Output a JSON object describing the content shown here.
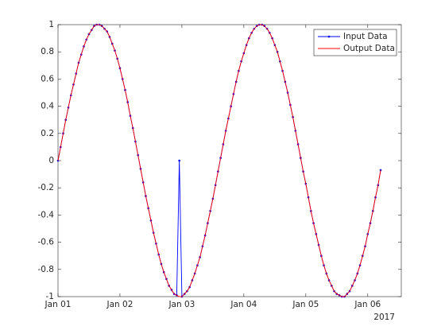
{
  "chart_data": {
    "type": "line",
    "x": [
      "2017-01-01T00:00",
      "2017-01-01T01:00",
      "2017-01-01T02:00",
      "2017-01-01T03:00",
      "2017-01-01T04:00",
      "2017-01-01T05:00",
      "2017-01-01T06:00",
      "2017-01-01T07:00",
      "2017-01-01T08:00",
      "2017-01-01T09:00",
      "2017-01-01T10:00",
      "2017-01-01T11:00",
      "2017-01-01T12:00",
      "2017-01-01T13:00",
      "2017-01-01T14:00",
      "2017-01-01T15:00",
      "2017-01-01T16:00",
      "2017-01-01T17:00",
      "2017-01-01T18:00",
      "2017-01-01T19:00",
      "2017-01-01T20:00",
      "2017-01-01T21:00",
      "2017-01-01T22:00",
      "2017-01-01T23:00",
      "2017-01-02T00:00",
      "2017-01-02T01:00",
      "2017-01-02T02:00",
      "2017-01-02T03:00",
      "2017-01-02T04:00",
      "2017-01-02T05:00",
      "2017-01-02T06:00",
      "2017-01-02T07:00",
      "2017-01-02T08:00",
      "2017-01-02T09:00",
      "2017-01-02T10:00",
      "2017-01-02T11:00",
      "2017-01-02T12:00",
      "2017-01-02T13:00",
      "2017-01-02T14:00",
      "2017-01-02T15:00",
      "2017-01-02T16:00",
      "2017-01-02T17:00",
      "2017-01-02T18:00",
      "2017-01-02T19:00",
      "2017-01-02T20:00",
      "2017-01-02T21:00",
      "2017-01-02T22:00",
      "2017-01-02T23:00",
      "2017-01-03T00:00",
      "2017-01-03T01:00",
      "2017-01-03T02:00",
      "2017-01-03T03:00",
      "2017-01-03T04:00",
      "2017-01-03T05:00",
      "2017-01-03T06:00",
      "2017-01-03T07:00",
      "2017-01-03T08:00",
      "2017-01-03T09:00",
      "2017-01-03T10:00",
      "2017-01-03T11:00",
      "2017-01-03T12:00",
      "2017-01-03T13:00",
      "2017-01-03T14:00",
      "2017-01-03T15:00",
      "2017-01-03T16:00",
      "2017-01-03T17:00",
      "2017-01-03T18:00",
      "2017-01-03T19:00",
      "2017-01-03T20:00",
      "2017-01-03T21:00",
      "2017-01-03T22:00",
      "2017-01-03T23:00",
      "2017-01-04T00:00",
      "2017-01-04T01:00",
      "2017-01-04T02:00",
      "2017-01-04T03:00",
      "2017-01-04T04:00",
      "2017-01-04T05:00",
      "2017-01-04T06:00",
      "2017-01-04T07:00",
      "2017-01-04T08:00",
      "2017-01-04T09:00",
      "2017-01-04T10:00",
      "2017-01-04T11:00",
      "2017-01-04T12:00",
      "2017-01-04T13:00",
      "2017-01-04T14:00",
      "2017-01-04T15:00",
      "2017-01-04T16:00",
      "2017-01-04T17:00",
      "2017-01-04T18:00",
      "2017-01-04T19:00",
      "2017-01-04T20:00",
      "2017-01-04T21:00",
      "2017-01-04T22:00",
      "2017-01-04T23:00",
      "2017-01-05T00:00",
      "2017-01-05T01:00",
      "2017-01-05T02:00",
      "2017-01-05T03:00",
      "2017-01-05T04:00",
      "2017-01-05T05:00",
      "2017-01-05T06:00",
      "2017-01-05T07:00",
      "2017-01-05T08:00",
      "2017-01-05T09:00",
      "2017-01-05T10:00",
      "2017-01-05T11:00",
      "2017-01-05T12:00",
      "2017-01-05T13:00",
      "2017-01-05T14:00",
      "2017-01-05T15:00",
      "2017-01-05T16:00",
      "2017-01-05T17:00",
      "2017-01-05T18:00",
      "2017-01-05T19:00",
      "2017-01-05T20:00",
      "2017-01-05T21:00",
      "2017-01-05T22:00",
      "2017-01-05T23:00",
      "2017-01-06T00:00",
      "2017-01-06T01:00",
      "2017-01-06T02:00",
      "2017-01-06T03:00",
      "2017-01-06T04:00",
      "2017-01-06T05:00"
    ],
    "series": [
      {
        "name": "Input Data",
        "color": "#0000ff",
        "marker": true,
        "values": [
          0,
          0.1,
          0.2,
          0.3,
          0.39,
          0.48,
          0.56,
          0.64,
          0.72,
          0.78,
          0.84,
          0.89,
          0.93,
          0.96,
          0.99,
          1.0,
          1.0,
          0.99,
          0.97,
          0.95,
          0.91,
          0.86,
          0.81,
          0.75,
          0.68,
          0.6,
          0.52,
          0.43,
          0.33,
          0.24,
          0.14,
          0.04,
          -0.06,
          -0.16,
          -0.26,
          -0.35,
          -0.44,
          -0.53,
          -0.61,
          -0.69,
          -0.76,
          -0.82,
          -0.87,
          -0.92,
          -0.95,
          -0.98,
          -0.99,
          0,
          -1.0,
          -0.98,
          -0.96,
          -0.93,
          -0.88,
          -0.83,
          -0.77,
          -0.71,
          -0.63,
          -0.55,
          -0.46,
          -0.37,
          -0.28,
          -0.18,
          -0.08,
          0.02,
          0.12,
          0.22,
          0.31,
          0.4,
          0.49,
          0.58,
          0.66,
          0.73,
          0.79,
          0.85,
          0.9,
          0.94,
          0.97,
          0.99,
          1.0,
          1.0,
          0.99,
          0.97,
          0.94,
          0.9,
          0.85,
          0.8,
          0.73,
          0.66,
          0.58,
          0.5,
          0.41,
          0.32,
          0.22,
          0.12,
          0.02,
          -0.08,
          -0.17,
          -0.27,
          -0.37,
          -0.46,
          -0.54,
          -0.62,
          -0.7,
          -0.77,
          -0.83,
          -0.88,
          -0.92,
          -0.96,
          -0.98,
          -0.99,
          -1.0,
          -1.0,
          -0.98,
          -0.96,
          -0.92,
          -0.88,
          -0.83,
          -0.77,
          -0.7,
          -0.63,
          -0.54,
          -0.46,
          -0.37,
          -0.27,
          -0.18,
          -0.07
        ]
      },
      {
        "name": "Output Data",
        "color": "#ff0000",
        "marker": false,
        "values": [
          0,
          0.1,
          0.2,
          0.3,
          0.39,
          0.48,
          0.56,
          0.64,
          0.72,
          0.78,
          0.84,
          0.89,
          0.93,
          0.96,
          0.99,
          1.0,
          1.0,
          0.99,
          0.97,
          0.95,
          0.91,
          0.86,
          0.81,
          0.75,
          0.68,
          0.6,
          0.52,
          0.43,
          0.33,
          0.24,
          0.14,
          0.04,
          -0.06,
          -0.16,
          -0.26,
          -0.35,
          -0.44,
          -0.53,
          -0.61,
          -0.69,
          -0.76,
          -0.82,
          -0.87,
          -0.92,
          -0.95,
          -0.98,
          -0.99,
          -1.0,
          -1.0,
          -0.98,
          -0.96,
          -0.93,
          -0.88,
          -0.83,
          -0.77,
          -0.71,
          -0.63,
          -0.55,
          -0.46,
          -0.37,
          -0.28,
          -0.18,
          -0.08,
          0.02,
          0.12,
          0.22,
          0.31,
          0.4,
          0.49,
          0.58,
          0.66,
          0.73,
          0.79,
          0.85,
          0.9,
          0.94,
          0.97,
          0.99,
          1.0,
          1.0,
          0.99,
          0.97,
          0.94,
          0.9,
          0.85,
          0.8,
          0.73,
          0.66,
          0.58,
          0.5,
          0.41,
          0.32,
          0.22,
          0.12,
          0.02,
          -0.08,
          -0.17,
          -0.27,
          -0.37,
          -0.46,
          -0.54,
          -0.62,
          -0.7,
          -0.77,
          -0.83,
          -0.88,
          -0.92,
          -0.96,
          -0.98,
          -0.99,
          -1.0,
          -1.0,
          -0.98,
          -0.96,
          -0.92,
          -0.88,
          -0.83,
          -0.77,
          -0.7,
          -0.63,
          -0.54,
          -0.46,
          -0.37,
          -0.27,
          -0.18,
          -0.07
        ]
      }
    ],
    "xlim": [
      "2017-01-01T00:00",
      "2017-01-06T13:00"
    ],
    "xticks": [
      {
        "value": "2017-01-01T00:00",
        "label": "Jan 01"
      },
      {
        "value": "2017-01-02T00:00",
        "label": "Jan 02"
      },
      {
        "value": "2017-01-03T00:00",
        "label": "Jan 03"
      },
      {
        "value": "2017-01-04T00:00",
        "label": "Jan 04"
      },
      {
        "value": "2017-01-05T00:00",
        "label": "Jan 05"
      },
      {
        "value": "2017-01-06T00:00",
        "label": "Jan 06"
      }
    ],
    "x_secondary_label": "2017",
    "ylim": [
      -1,
      1
    ],
    "yticks": [
      -1,
      -0.8,
      -0.6,
      -0.4,
      -0.2,
      0,
      0.2,
      0.4,
      0.6,
      0.8,
      1
    ],
    "grid": false,
    "legend": "northeast"
  }
}
